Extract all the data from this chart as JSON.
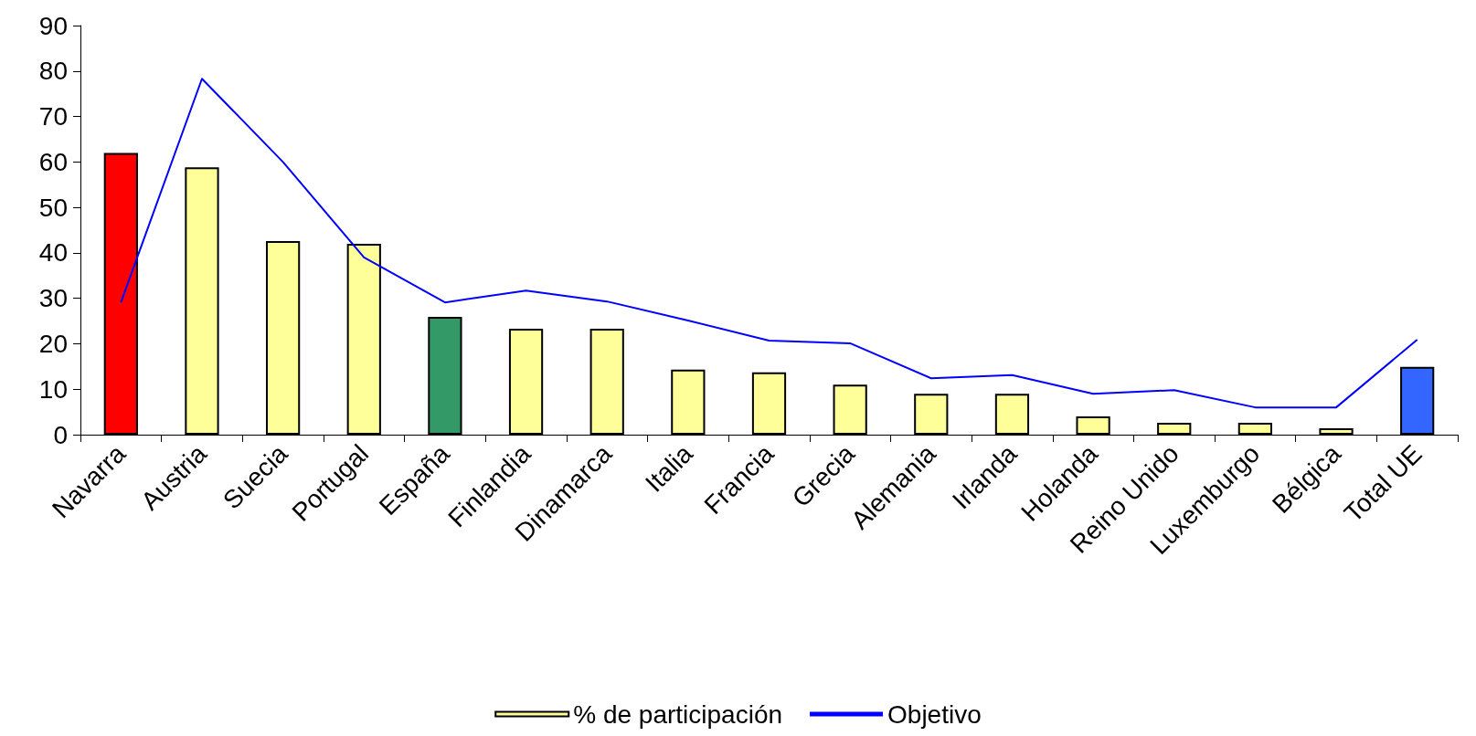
{
  "chart_data": {
    "type": "bar",
    "categories": [
      "Navarra",
      "Austria",
      "Suecia",
      "Portugal",
      "España",
      "Finlandia",
      "Dinamarca",
      "Italia",
      "Francia",
      "Grecia",
      "Alemania",
      "Irlanda",
      "Holanda",
      "Reino Unido",
      "Luxemburgo",
      "Bélgica",
      "Total UE"
    ],
    "series": [
      {
        "name": "% de participación",
        "color": "#ffff99",
        "colors": [
          "#ff0000",
          "#ffff99",
          "#ffff99",
          "#ffff99",
          "#339966",
          "#ffff99",
          "#ffff99",
          "#ffff99",
          "#ffff99",
          "#ffff99",
          "#ffff99",
          "#ffff99",
          "#ffff99",
          "#ffff99",
          "#ffff99",
          "#ffff99",
          "#3366ff"
        ],
        "values": [
          62,
          58.8,
          42.6,
          42,
          25.9,
          23.3,
          23.3,
          14.3,
          13.7,
          11,
          9,
          9,
          4,
          2.6,
          2.6,
          1.4,
          14.9
        ]
      },
      {
        "name": "Objetivo",
        "type": "line",
        "color": "#0000ff",
        "marker": "none",
        "values": [
          29.1,
          78.3,
          60,
          39,
          29.1,
          31.7,
          29.3,
          25.1,
          20.7,
          20.1,
          12.4,
          13.1,
          9,
          9.8,
          6,
          6,
          20.9
        ]
      }
    ],
    "ylim": [
      0,
      90
    ],
    "yticks": [
      0,
      10,
      20,
      30,
      40,
      50,
      60,
      70,
      80,
      90
    ],
    "grid": false,
    "legend": "bottom"
  }
}
